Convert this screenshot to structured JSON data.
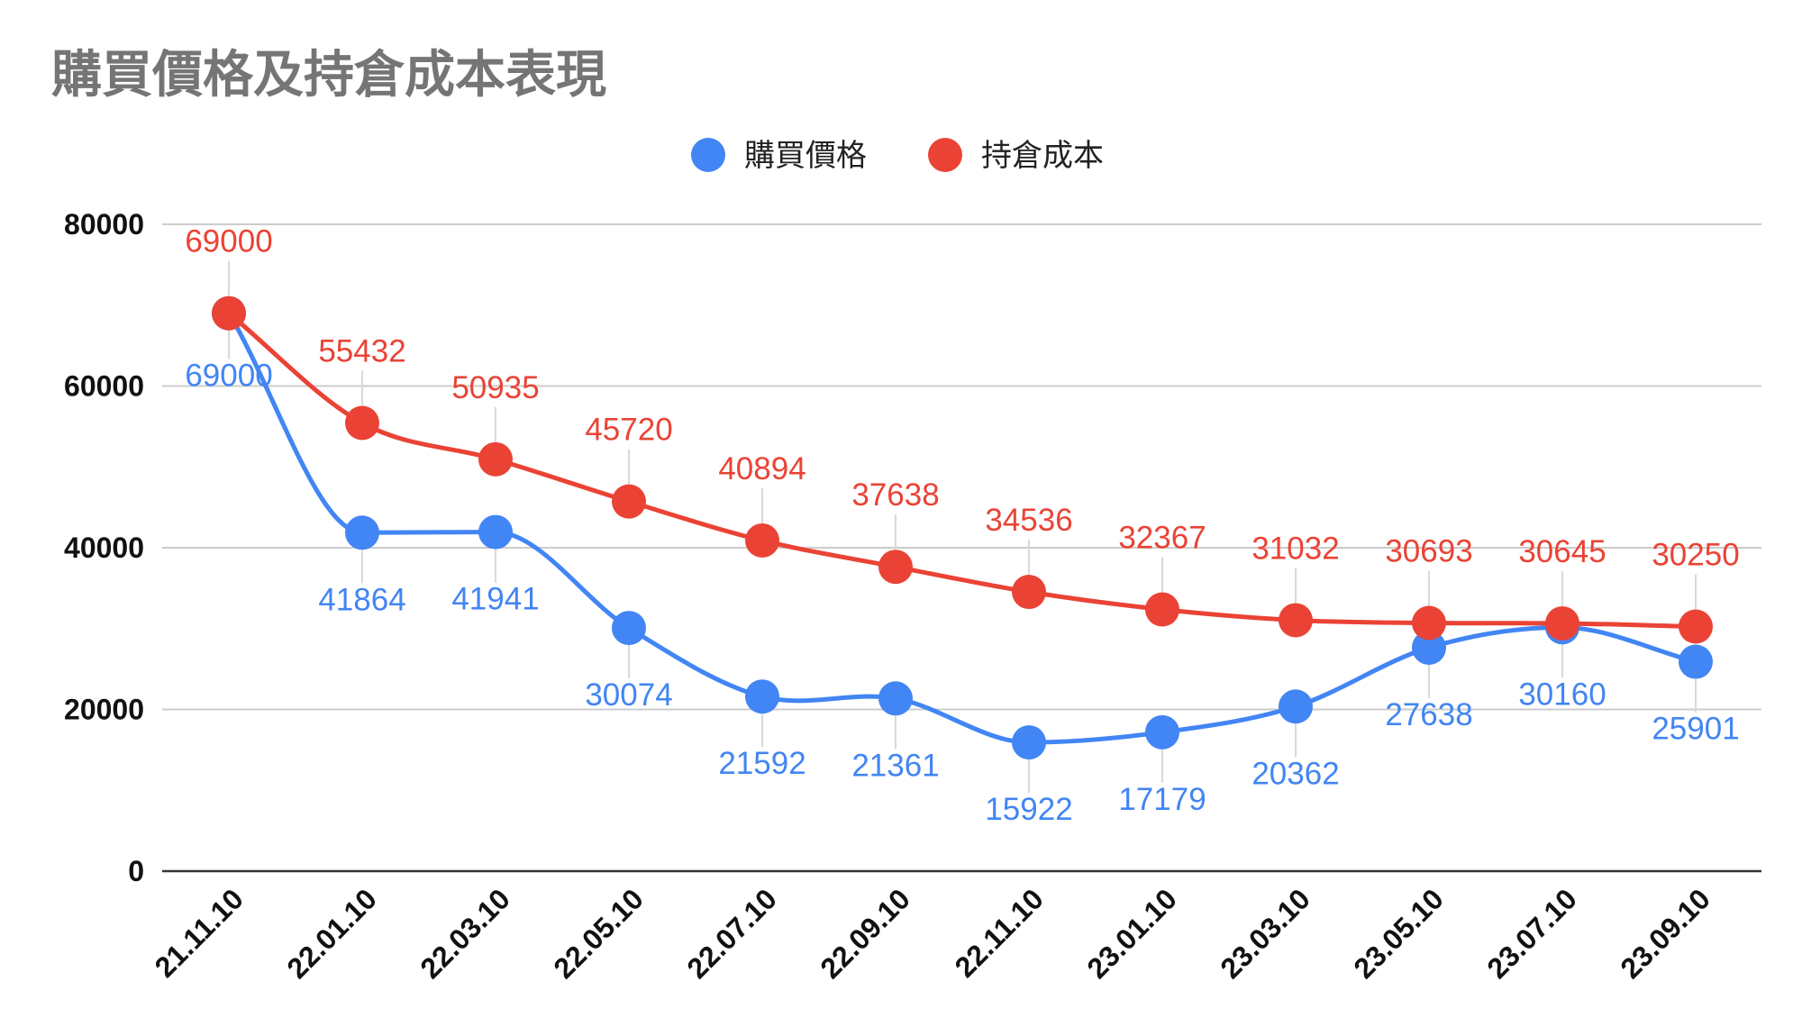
{
  "chart_data": {
    "type": "line",
    "title": "購買價格及持倉成本表現",
    "xlabel": "",
    "ylabel": "",
    "categories": [
      "21.11.10",
      "22.01.10",
      "22.03.10",
      "22.05.10",
      "22.07.10",
      "22.09.10",
      "22.11.10",
      "23.01.10",
      "23.03.10",
      "23.05.10",
      "23.07.10",
      "23.09.10"
    ],
    "ylim": [
      0,
      80000
    ],
    "yticks": [
      "0",
      "20000",
      "40000",
      "60000",
      "80000"
    ],
    "grid": true,
    "legend_position": "top",
    "smooth": true,
    "series": [
      {
        "name": "購買價格",
        "color": "#4285F4",
        "values": [
          69000,
          41864,
          41941,
          30074,
          21592,
          21361,
          15922,
          17179,
          20362,
          27638,
          30160,
          25901
        ],
        "labels": [
          "69000",
          "41864",
          "41941",
          "30074",
          "21592",
          "21361",
          "15922",
          "17179",
          "20362",
          "27638",
          "30160",
          "25901"
        ]
      },
      {
        "name": "持倉成本",
        "color": "#EA4335",
        "values": [
          69000,
          55432,
          50935,
          45720,
          40894,
          37638,
          34536,
          32367,
          31032,
          30693,
          30645,
          30250
        ],
        "labels": [
          "69000",
          "55432",
          "50935",
          "45720",
          "40894",
          "37638",
          "34536",
          "32367",
          "31032",
          "30693",
          "30645",
          "30250"
        ]
      }
    ]
  }
}
